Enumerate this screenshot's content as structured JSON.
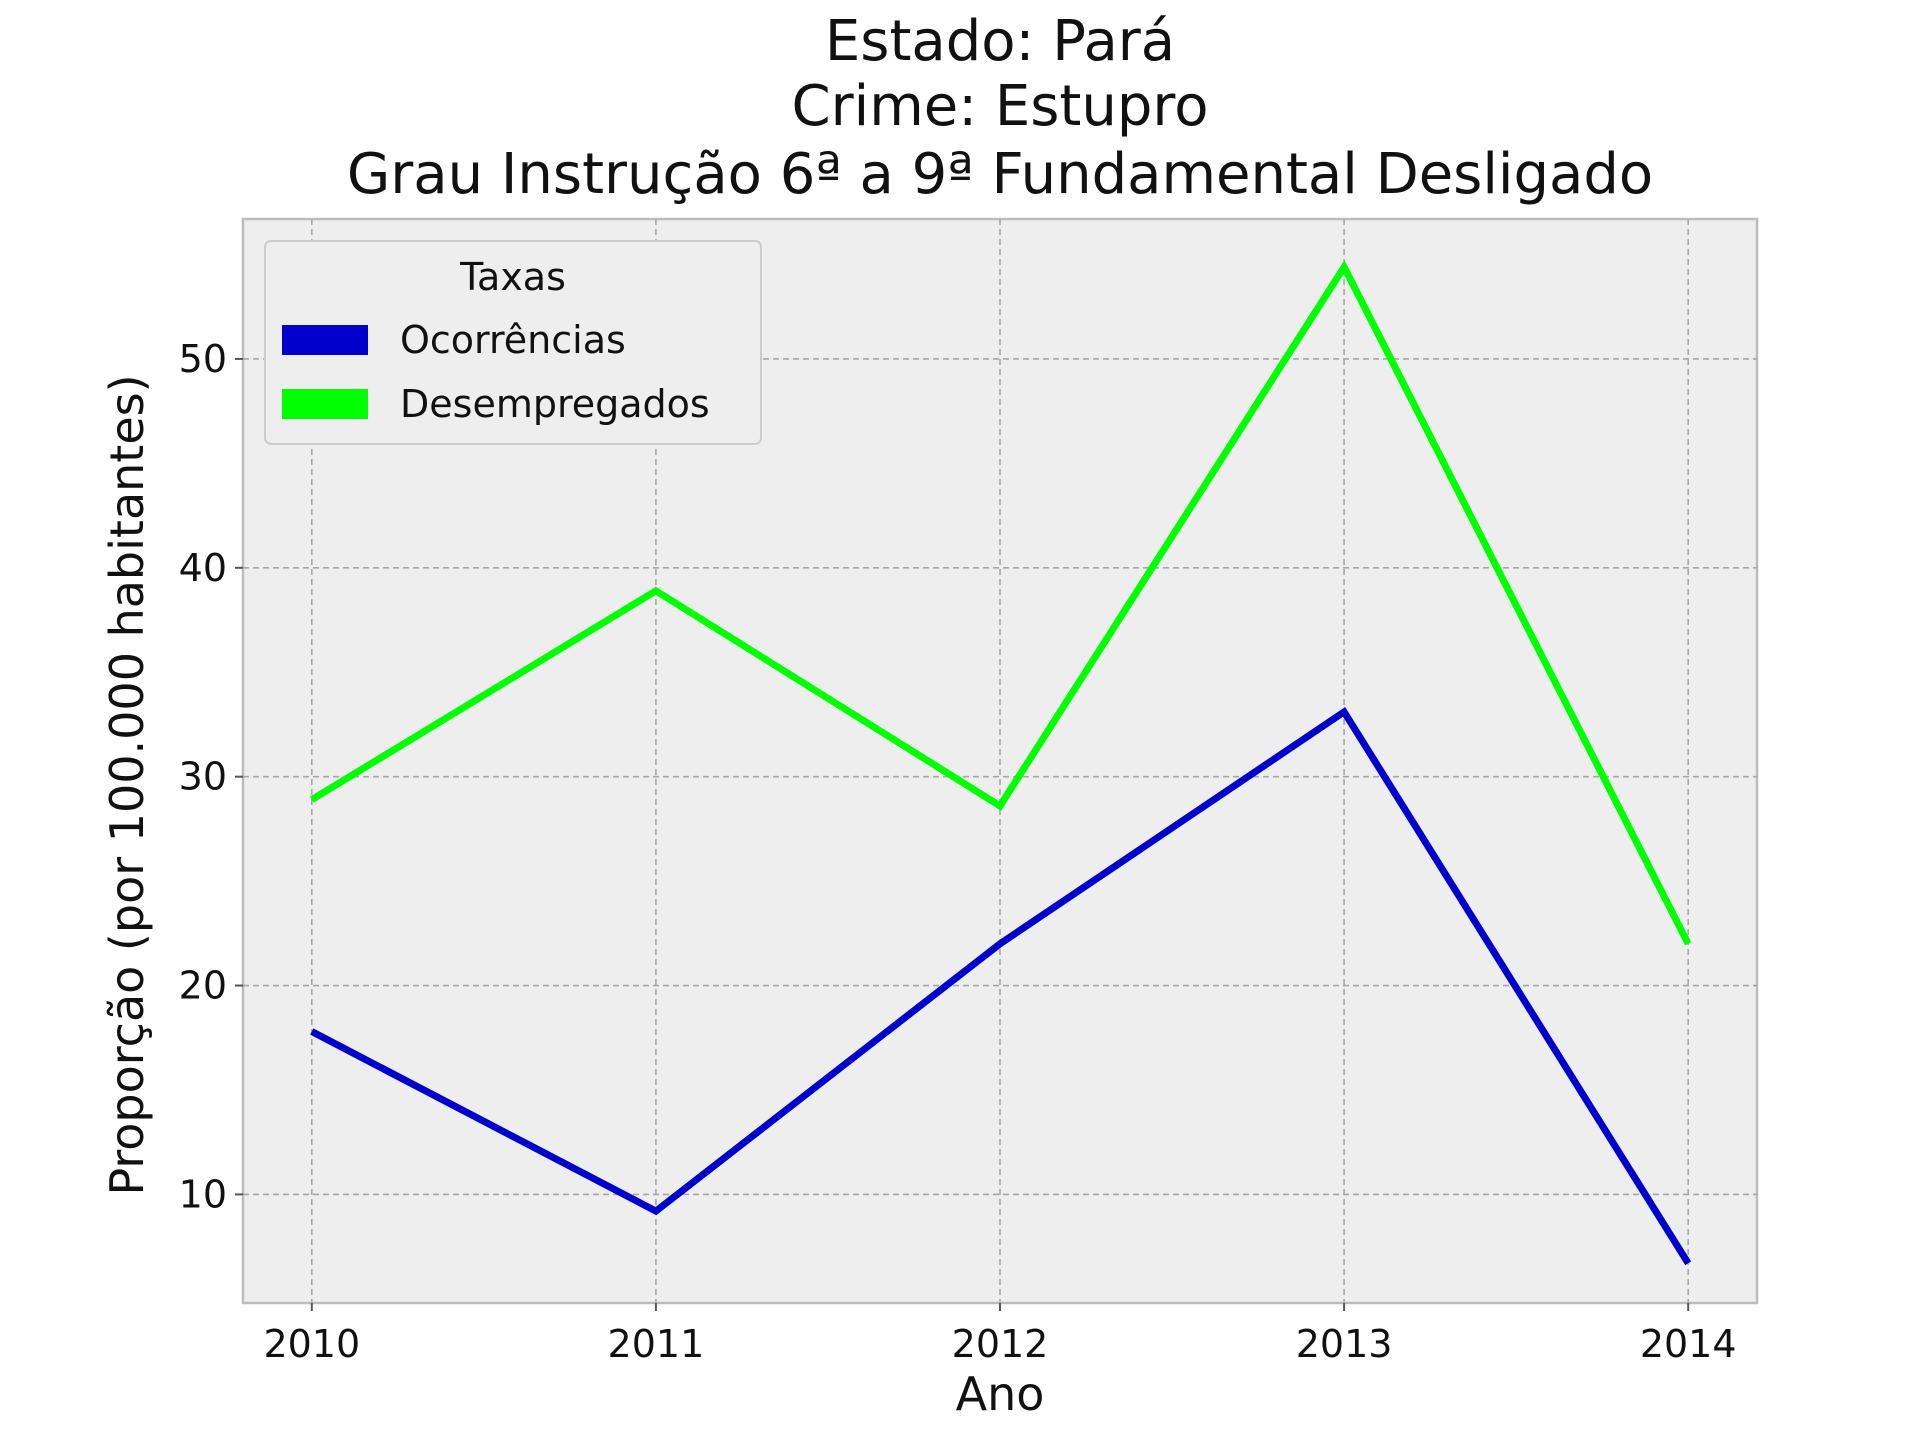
{
  "chart_data": {
    "type": "line",
    "title": [
      "Estado: Pará",
      "Crime: Estupro",
      "Grau Instrução  6ª a 9ª Fundamental   Desligado"
    ],
    "xlabel": "Ano",
    "ylabel": "Proporção (por 100.000 habitantes)",
    "x": [
      2010,
      2011,
      2012,
      2013,
      2014
    ],
    "x_tick_labels": [
      "2010",
      "2011",
      "2012",
      "2013",
      "2014"
    ],
    "y_ticks": [
      10,
      20,
      30,
      40,
      50
    ],
    "y_tick_labels": [
      "10",
      "20",
      "30",
      "40",
      "50"
    ],
    "xlim": [
      2009.8,
      2014.2
    ],
    "ylim": [
      4.8,
      56.7
    ],
    "grid": true,
    "legend": {
      "title": "Taxas",
      "position": "top-left"
    },
    "series": [
      {
        "name": "Ocorrências",
        "color": "#0000cd",
        "values": [
          17.8,
          9.2,
          22.0,
          33.1,
          6.7
        ]
      },
      {
        "name": "Desempregados",
        "color": "#00ff00",
        "values": [
          28.9,
          38.9,
          28.6,
          54.4,
          22.0
        ]
      }
    ]
  }
}
